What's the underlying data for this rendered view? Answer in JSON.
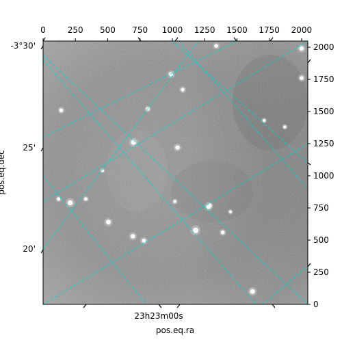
{
  "chart_data": {
    "type": "heatmap",
    "description_kind": "astronomical-image-with-wcs-grid",
    "colormap": "grayscale",
    "pixel_axes": {
      "x_range": [
        0,
        2048
      ],
      "y_range": [
        0,
        2048
      ],
      "x_ticks": [
        0,
        250,
        500,
        750,
        1000,
        1250,
        1500,
        1750,
        2000
      ],
      "y_ticks": [
        0,
        250,
        500,
        750,
        1000,
        1250,
        1500,
        1750,
        2000
      ]
    },
    "world_axes": {
      "xlabel": "pos.eq.ra",
      "ylabel": "pos.eq.dec",
      "ra_ticks": [
        "23h23m00s"
      ],
      "dec_ticks": [
        "-3°30'",
        "25'",
        "20'"
      ]
    },
    "grid": {
      "on": true,
      "color": "#00d5d5",
      "style": "dashed"
    },
    "grid_lines_pixel": [
      {
        "family": "ra",
        "points": [
          [
            0,
            1900
          ],
          [
            1650,
            0
          ]
        ]
      },
      {
        "family": "ra",
        "points": [
          [
            0,
            1000
          ],
          [
            800,
            0
          ]
        ]
      },
      {
        "family": "ra",
        "points": [
          [
            1050,
            2048
          ],
          [
            2048,
            900
          ]
        ]
      },
      {
        "family": "ra",
        "points": [
          [
            0,
            800
          ],
          [
            2048,
            2048
          ]
        ]
      },
      {
        "family": "dec",
        "points": [
          [
            0,
            1940
          ],
          [
            2048,
            0
          ]
        ]
      },
      {
        "family": "dec",
        "points": [
          [
            1000,
            2048
          ],
          [
            2048,
            1100
          ]
        ]
      },
      {
        "family": "dec",
        "points": [
          [
            0,
            1300
          ],
          [
            1500,
            2048
          ]
        ]
      },
      {
        "family": "dec",
        "points": [
          [
            0,
            430
          ],
          [
            1200,
            2048
          ]
        ]
      },
      {
        "family": "dec",
        "points": [
          [
            0,
            0
          ],
          [
            2048,
            1250
          ]
        ]
      },
      {
        "family": "dec",
        "points": [
          [
            1700,
            0
          ],
          [
            2048,
            300
          ]
        ]
      }
    ],
    "stars_pixel": [
      {
        "x": 1180,
        "y": 575,
        "brightness": 1.0
      },
      {
        "x": 210,
        "y": 790,
        "brightness": 0.9
      },
      {
        "x": 700,
        "y": 1260,
        "brightness": 0.85
      },
      {
        "x": 505,
        "y": 640,
        "brightness": 0.8
      },
      {
        "x": 695,
        "y": 530,
        "brightness": 0.75
      },
      {
        "x": 1280,
        "y": 760,
        "brightness": 0.8
      },
      {
        "x": 1040,
        "y": 1220,
        "brightness": 0.7
      },
      {
        "x": 780,
        "y": 495,
        "brightness": 0.65
      },
      {
        "x": 990,
        "y": 1790,
        "brightness": 0.7
      },
      {
        "x": 1620,
        "y": 100,
        "brightness": 0.85
      },
      {
        "x": 140,
        "y": 1510,
        "brightness": 0.6
      },
      {
        "x": 810,
        "y": 1520,
        "brightness": 0.55
      },
      {
        "x": 2000,
        "y": 1760,
        "brightness": 0.65
      },
      {
        "x": 1340,
        "y": 2010,
        "brightness": 0.6
      },
      {
        "x": 1390,
        "y": 560,
        "brightness": 0.6
      },
      {
        "x": 2000,
        "y": 1990,
        "brightness": 0.75
      },
      {
        "x": 1080,
        "y": 1670,
        "brightness": 0.55
      },
      {
        "x": 120,
        "y": 820,
        "brightness": 0.5
      },
      {
        "x": 1290,
        "y": 770,
        "brightness": 0.55
      },
      {
        "x": 1710,
        "y": 1430,
        "brightness": 0.45
      },
      {
        "x": 330,
        "y": 820,
        "brightness": 0.5
      },
      {
        "x": 1020,
        "y": 800,
        "brightness": 0.45
      },
      {
        "x": 1450,
        "y": 720,
        "brightness": 0.4
      },
      {
        "x": 1870,
        "y": 1380,
        "brightness": 0.45
      },
      {
        "x": 460,
        "y": 1040,
        "brightness": 0.4
      }
    ]
  }
}
